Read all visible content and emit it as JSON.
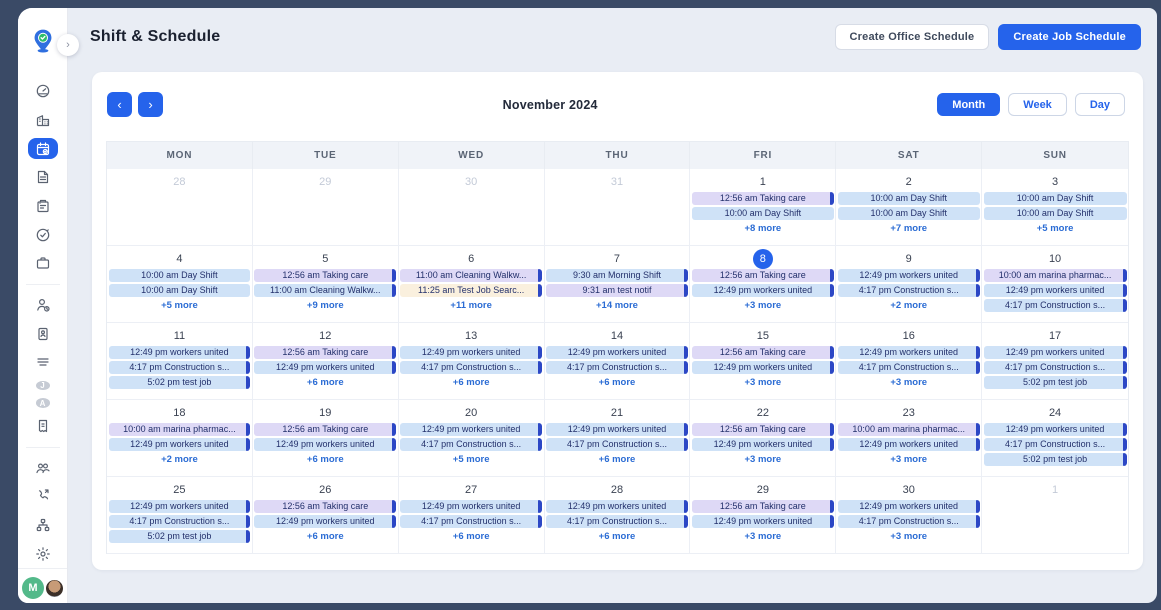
{
  "app": {
    "title": "Shift & Schedule",
    "create_office_label": "Create Office Schedule",
    "create_job_label": "Create Job Schedule"
  },
  "toolbar": {
    "month_title": "November 2024",
    "prev_label": "‹",
    "next_label": "›",
    "views": [
      {
        "label": "Month",
        "active": true
      },
      {
        "label": "Week",
        "active": false
      },
      {
        "label": "Day",
        "active": false
      }
    ]
  },
  "sidebar": {
    "collapse_chevron": "›",
    "icons": [
      "brand-pin-logo",
      "dashboard-gauge-icon",
      "building-icon",
      "calendar-icon",
      "document-icon",
      "note-tag-icon",
      "clock-check-icon",
      "briefcase-icon",
      "person-clock-icon",
      "id-badge-icon",
      "list-lines-icon",
      "avatar-j",
      "avatar-a",
      "receipt-dollar-icon",
      "people-group-icon",
      "phone-call-icon",
      "org-chart-icon",
      "settings-gear-icon"
    ],
    "active_icon": "calendar-icon",
    "mini_avatars": [
      "J",
      "A"
    ],
    "user_avatar_initial": "M"
  },
  "colors": {
    "accent": "#2563eb",
    "event_blue": "#cfe2f7",
    "event_purple": "#ded9f6",
    "event_cream": "#faf0de",
    "event_bar": "#2c47c5",
    "sidebar_active": "#2563eb",
    "avatar_green": "#53b98a"
  },
  "calendar": {
    "day_headers": [
      "MON",
      "TUE",
      "WED",
      "THU",
      "FRI",
      "SAT",
      "SUN"
    ],
    "weeks": [
      [
        {
          "n": "28",
          "out": true,
          "today": false,
          "events": [],
          "more": null
        },
        {
          "n": "29",
          "out": true,
          "today": false,
          "events": [],
          "more": null
        },
        {
          "n": "30",
          "out": true,
          "today": false,
          "events": [],
          "more": null
        },
        {
          "n": "31",
          "out": true,
          "today": false,
          "events": [],
          "more": null
        },
        {
          "n": "1",
          "out": false,
          "today": false,
          "events": [
            {
              "t": "12:56 am Taking care",
              "c": "purple",
              "bar": true
            },
            {
              "t": "10:00 am Day Shift",
              "c": "blue",
              "bar": false
            }
          ],
          "more": "+8 more"
        },
        {
          "n": "2",
          "out": false,
          "today": false,
          "events": [
            {
              "t": "10:00 am Day Shift",
              "c": "blue",
              "bar": false
            },
            {
              "t": "10:00 am Day Shift",
              "c": "blue",
              "bar": false
            }
          ],
          "more": "+7 more"
        },
        {
          "n": "3",
          "out": false,
          "today": false,
          "events": [
            {
              "t": "10:00 am Day Shift",
              "c": "blue",
              "bar": false
            },
            {
              "t": "10:00 am Day Shift",
              "c": "blue",
              "bar": false
            }
          ],
          "more": "+5 more"
        }
      ],
      [
        {
          "n": "4",
          "out": false,
          "today": false,
          "events": [
            {
              "t": "10:00 am Day Shift",
              "c": "blue",
              "bar": false
            },
            {
              "t": "10:00 am Day Shift",
              "c": "blue",
              "bar": false
            }
          ],
          "more": "+5 more"
        },
        {
          "n": "5",
          "out": false,
          "today": false,
          "events": [
            {
              "t": "12:56 am Taking care",
              "c": "purple",
              "bar": true
            },
            {
              "t": "11:00 am Cleaning Walkw...",
              "c": "blue",
              "bar": true
            }
          ],
          "more": "+9 more"
        },
        {
          "n": "6",
          "out": false,
          "today": false,
          "events": [
            {
              "t": "11:00 am Cleaning Walkw...",
              "c": "purple",
              "bar": true
            },
            {
              "t": "11:25 am Test Job Searc...",
              "c": "cream",
              "bar": true
            }
          ],
          "more": "+11 more"
        },
        {
          "n": "7",
          "out": false,
          "today": false,
          "events": [
            {
              "t": "9:30 am Morning Shift",
              "c": "blue",
              "bar": true
            },
            {
              "t": "9:31 am test notif",
              "c": "purple",
              "bar": true
            }
          ],
          "more": "+14 more"
        },
        {
          "n": "8",
          "out": false,
          "today": true,
          "events": [
            {
              "t": "12:56 am Taking care",
              "c": "purple",
              "bar": true
            },
            {
              "t": "12:49 pm workers united",
              "c": "blue",
              "bar": true
            }
          ],
          "more": "+3 more"
        },
        {
          "n": "9",
          "out": false,
          "today": false,
          "events": [
            {
              "t": "12:49 pm workers united",
              "c": "blue",
              "bar": true
            },
            {
              "t": "4:17 pm Construction s...",
              "c": "blue",
              "bar": true
            }
          ],
          "more": "+2 more"
        },
        {
          "n": "10",
          "out": false,
          "today": false,
          "events": [
            {
              "t": "10:00 am marina pharmac...",
              "c": "purple",
              "bar": true
            },
            {
              "t": "12:49 pm workers united",
              "c": "blue",
              "bar": true
            },
            {
              "t": "4:17 pm Construction s...",
              "c": "blue",
              "bar": true
            }
          ],
          "more": null
        }
      ],
      [
        {
          "n": "11",
          "out": false,
          "today": false,
          "events": [
            {
              "t": "12:49 pm workers united",
              "c": "blue",
              "bar": true
            },
            {
              "t": "4:17 pm Construction s...",
              "c": "blue",
              "bar": true
            },
            {
              "t": "5:02 pm test job",
              "c": "blue",
              "bar": true
            }
          ],
          "more": null
        },
        {
          "n": "12",
          "out": false,
          "today": false,
          "events": [
            {
              "t": "12:56 am Taking care",
              "c": "purple",
              "bar": true
            },
            {
              "t": "12:49 pm workers united",
              "c": "blue",
              "bar": true
            }
          ],
          "more": "+6 more"
        },
        {
          "n": "13",
          "out": false,
          "today": false,
          "events": [
            {
              "t": "12:49 pm workers united",
              "c": "blue",
              "bar": true
            },
            {
              "t": "4:17 pm Construction s...",
              "c": "blue",
              "bar": true
            }
          ],
          "more": "+6 more"
        },
        {
          "n": "14",
          "out": false,
          "today": false,
          "events": [
            {
              "t": "12:49 pm workers united",
              "c": "blue",
              "bar": true
            },
            {
              "t": "4:17 pm Construction s...",
              "c": "blue",
              "bar": true
            }
          ],
          "more": "+6 more"
        },
        {
          "n": "15",
          "out": false,
          "today": false,
          "events": [
            {
              "t": "12:56 am Taking care",
              "c": "purple",
              "bar": true
            },
            {
              "t": "12:49 pm workers united",
              "c": "blue",
              "bar": true
            }
          ],
          "more": "+3 more"
        },
        {
          "n": "16",
          "out": false,
          "today": false,
          "events": [
            {
              "t": "12:49 pm workers united",
              "c": "blue",
              "bar": true
            },
            {
              "t": "4:17 pm Construction s...",
              "c": "blue",
              "bar": true
            }
          ],
          "more": "+3 more"
        },
        {
          "n": "17",
          "out": false,
          "today": false,
          "events": [
            {
              "t": "12:49 pm workers united",
              "c": "blue",
              "bar": true
            },
            {
              "t": "4:17 pm Construction s...",
              "c": "blue",
              "bar": true
            },
            {
              "t": "5:02 pm test job",
              "c": "blue",
              "bar": true
            }
          ],
          "more": null
        }
      ],
      [
        {
          "n": "18",
          "out": false,
          "today": false,
          "events": [
            {
              "t": "10:00 am marina pharmac...",
              "c": "purple",
              "bar": true
            },
            {
              "t": "12:49 pm workers united",
              "c": "blue",
              "bar": true
            }
          ],
          "more": "+2 more"
        },
        {
          "n": "19",
          "out": false,
          "today": false,
          "events": [
            {
              "t": "12:56 am Taking care",
              "c": "purple",
              "bar": true
            },
            {
              "t": "12:49 pm workers united",
              "c": "blue",
              "bar": true
            }
          ],
          "more": "+6 more"
        },
        {
          "n": "20",
          "out": false,
          "today": false,
          "events": [
            {
              "t": "12:49 pm workers united",
              "c": "blue",
              "bar": true
            },
            {
              "t": "4:17 pm Construction s...",
              "c": "blue",
              "bar": true
            }
          ],
          "more": "+5 more"
        },
        {
          "n": "21",
          "out": false,
          "today": false,
          "events": [
            {
              "t": "12:49 pm workers united",
              "c": "blue",
              "bar": true
            },
            {
              "t": "4:17 pm Construction s...",
              "c": "blue",
              "bar": true
            }
          ],
          "more": "+6 more"
        },
        {
          "n": "22",
          "out": false,
          "today": false,
          "events": [
            {
              "t": "12:56 am Taking care",
              "c": "purple",
              "bar": true
            },
            {
              "t": "12:49 pm workers united",
              "c": "blue",
              "bar": true
            }
          ],
          "more": "+3 more"
        },
        {
          "n": "23",
          "out": false,
          "today": false,
          "events": [
            {
              "t": "10:00 am marina pharmac...",
              "c": "purple",
              "bar": true
            },
            {
              "t": "12:49 pm workers united",
              "c": "blue",
              "bar": true
            }
          ],
          "more": "+3 more"
        },
        {
          "n": "24",
          "out": false,
          "today": false,
          "events": [
            {
              "t": "12:49 pm workers united",
              "c": "blue",
              "bar": true
            },
            {
              "t": "4:17 pm Construction s...",
              "c": "blue",
              "bar": true
            },
            {
              "t": "5:02 pm test job",
              "c": "blue",
              "bar": true
            }
          ],
          "more": null
        }
      ],
      [
        {
          "n": "25",
          "out": false,
          "today": false,
          "events": [
            {
              "t": "12:49 pm workers united",
              "c": "blue",
              "bar": true
            },
            {
              "t": "4:17 pm Construction s...",
              "c": "blue",
              "bar": true
            },
            {
              "t": "5:02 pm test job",
              "c": "blue",
              "bar": true
            }
          ],
          "more": null
        },
        {
          "n": "26",
          "out": false,
          "today": false,
          "events": [
            {
              "t": "12:56 am Taking care",
              "c": "purple",
              "bar": true
            },
            {
              "t": "12:49 pm workers united",
              "c": "blue",
              "bar": true
            }
          ],
          "more": "+6 more"
        },
        {
          "n": "27",
          "out": false,
          "today": false,
          "events": [
            {
              "t": "12:49 pm workers united",
              "c": "blue",
              "bar": true
            },
            {
              "t": "4:17 pm Construction s...",
              "c": "blue",
              "bar": true
            }
          ],
          "more": "+6 more"
        },
        {
          "n": "28",
          "out": false,
          "today": false,
          "events": [
            {
              "t": "12:49 pm workers united",
              "c": "blue",
              "bar": true
            },
            {
              "t": "4:17 pm Construction s...",
              "c": "blue",
              "bar": true
            }
          ],
          "more": "+6 more"
        },
        {
          "n": "29",
          "out": false,
          "today": false,
          "events": [
            {
              "t": "12:56 am Taking care",
              "c": "purple",
              "bar": true
            },
            {
              "t": "12:49 pm workers united",
              "c": "blue",
              "bar": true
            }
          ],
          "more": "+3 more"
        },
        {
          "n": "30",
          "out": false,
          "today": false,
          "events": [
            {
              "t": "12:49 pm workers united",
              "c": "blue",
              "bar": true
            },
            {
              "t": "4:17 pm Construction s...",
              "c": "blue",
              "bar": true
            }
          ],
          "more": "+3 more"
        },
        {
          "n": "1",
          "out": true,
          "today": false,
          "events": [],
          "more": null
        }
      ]
    ]
  }
}
